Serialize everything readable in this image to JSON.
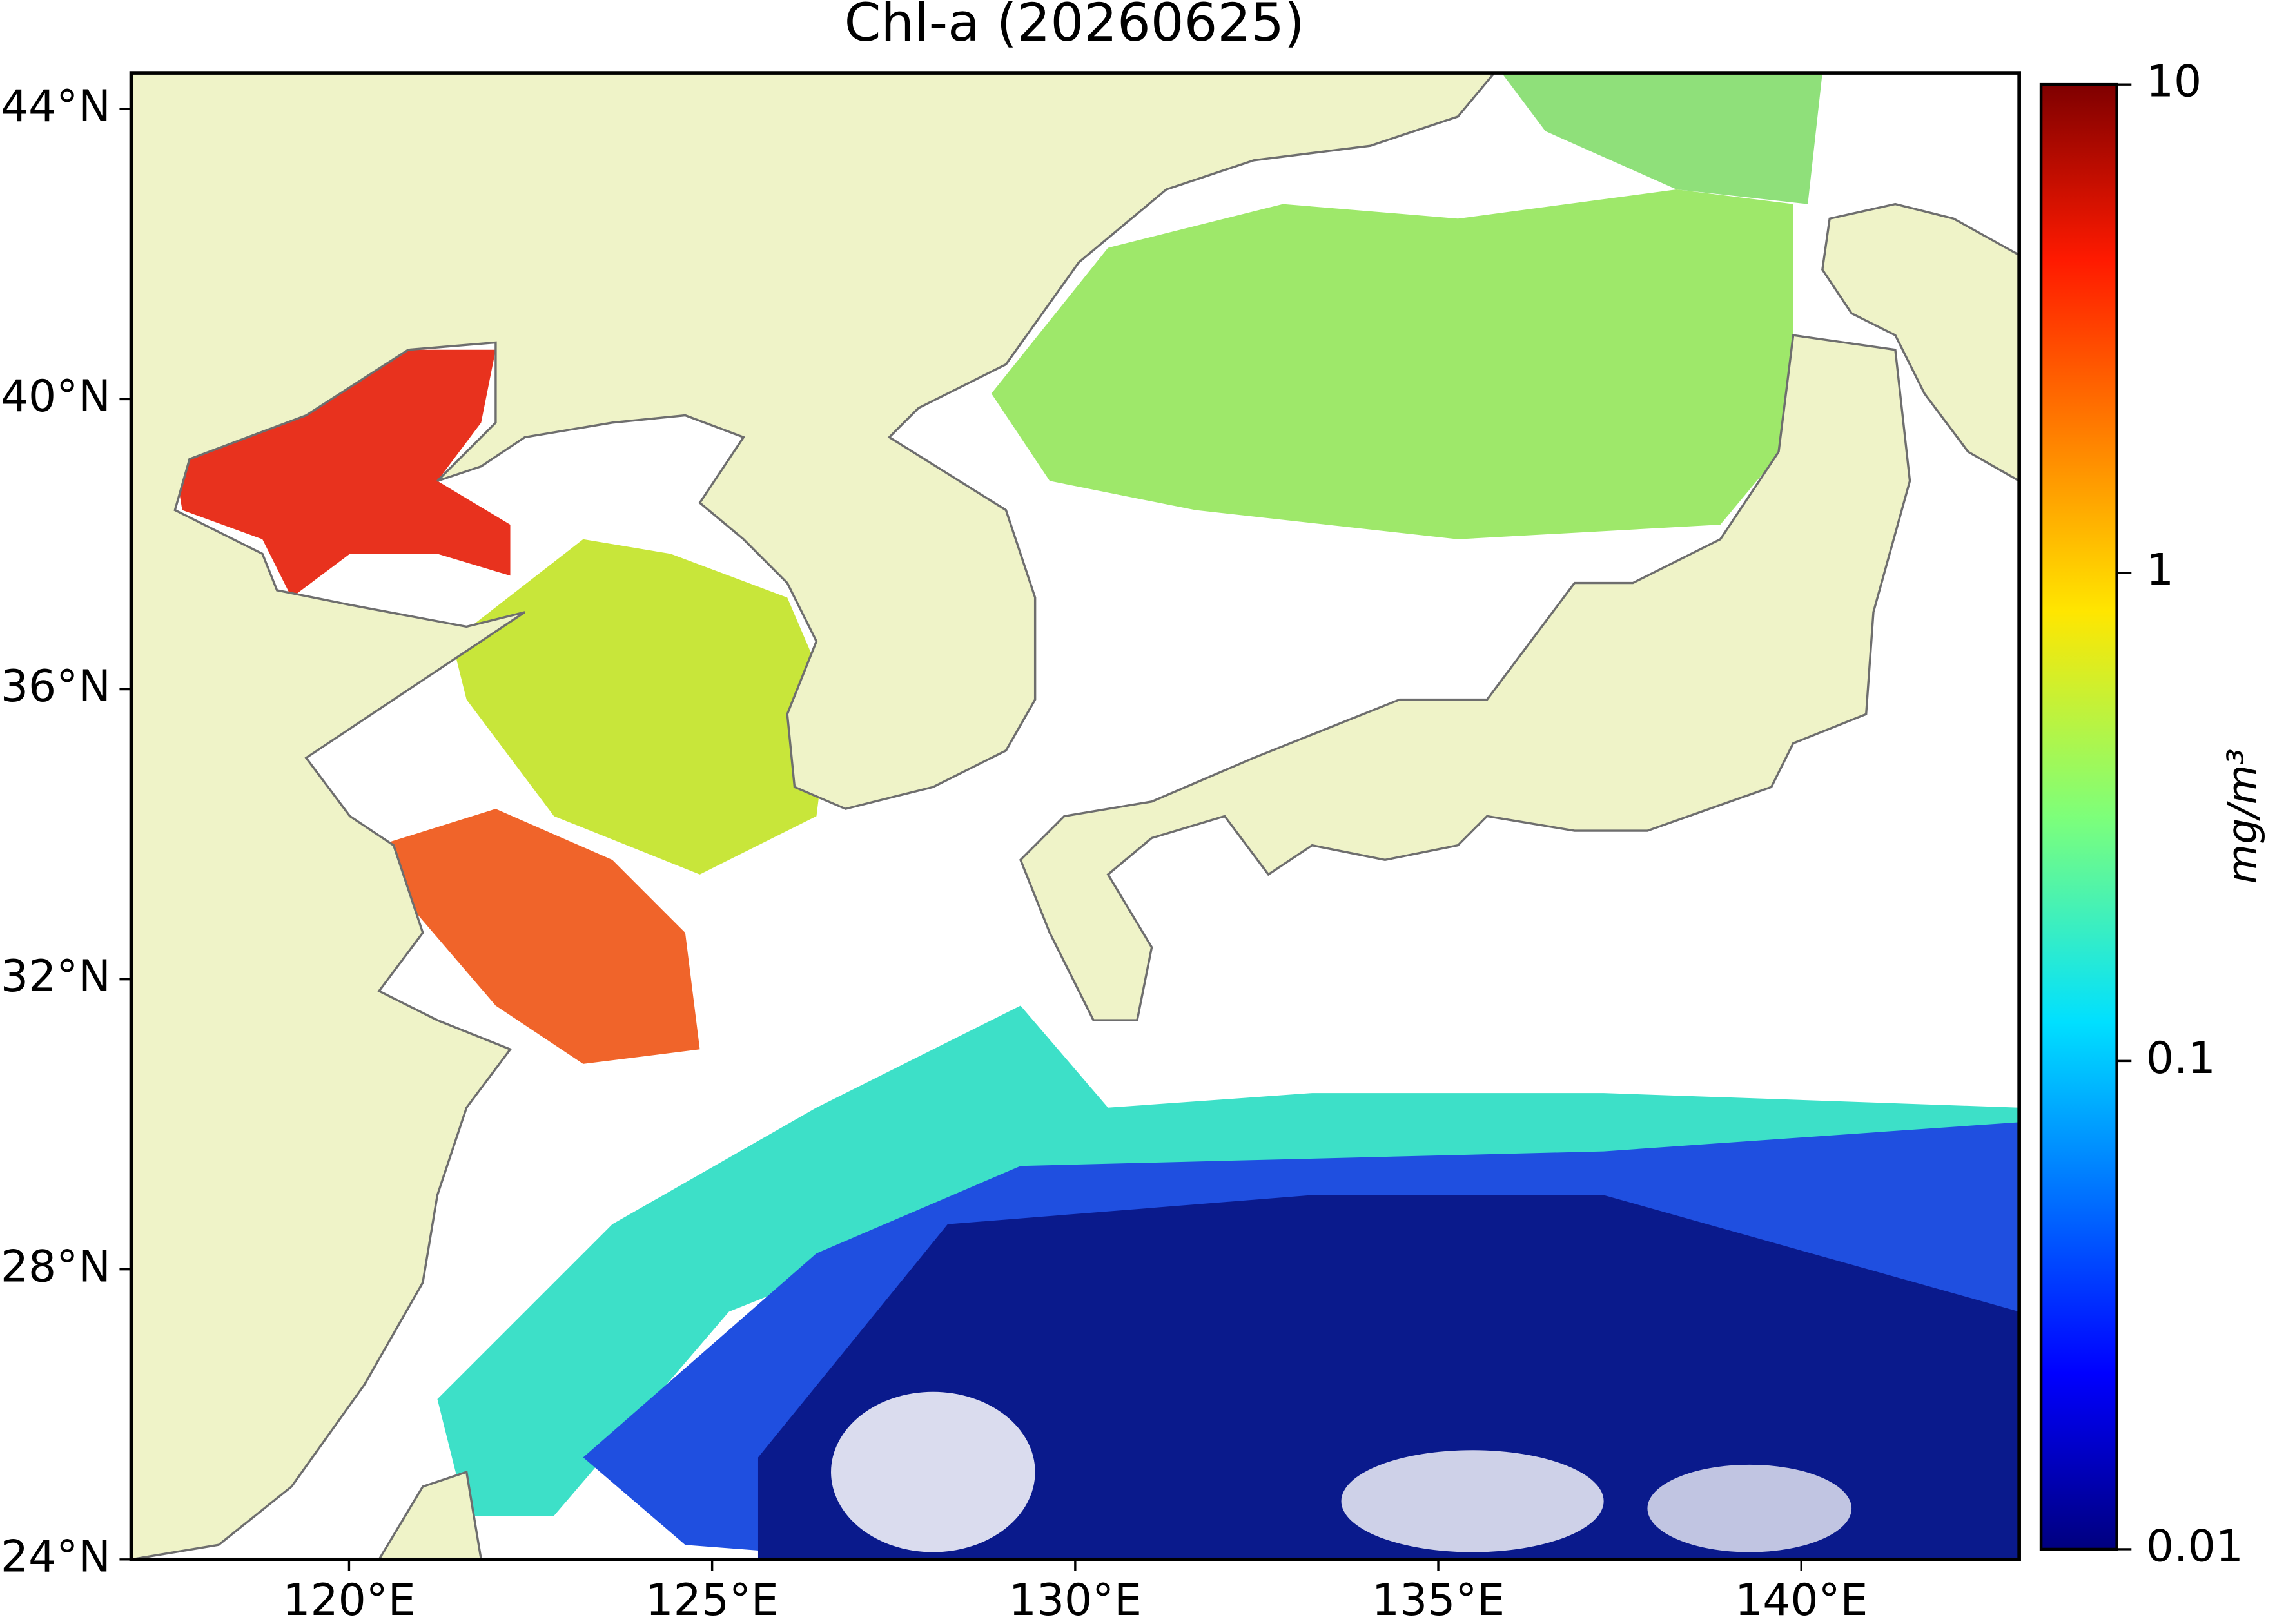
{
  "chart_data": {
    "type": "map",
    "title": "Chl-a (20260625)",
    "xlim": [
      117,
      143
    ],
    "ylim": [
      24,
      44.5
    ],
    "xticks": [
      {
        "value": 120,
        "label": "120°E"
      },
      {
        "value": 125,
        "label": "125°E"
      },
      {
        "value": 130,
        "label": "130°E"
      },
      {
        "value": 135,
        "label": "135°E"
      },
      {
        "value": 140,
        "label": "140°E"
      }
    ],
    "yticks": [
      {
        "value": 24,
        "label": "24°N"
      },
      {
        "value": 28,
        "label": "28°N"
      },
      {
        "value": 32,
        "label": "32°N"
      },
      {
        "value": 36,
        "label": "36°N"
      },
      {
        "value": 40,
        "label": "40°N"
      },
      {
        "value": 44,
        "label": "44°N"
      }
    ],
    "colorbar": {
      "label": "mg/m³",
      "scale": "log",
      "lim": [
        0.01,
        10
      ],
      "ticks": [
        0.01,
        0.1,
        1,
        10
      ]
    }
  }
}
